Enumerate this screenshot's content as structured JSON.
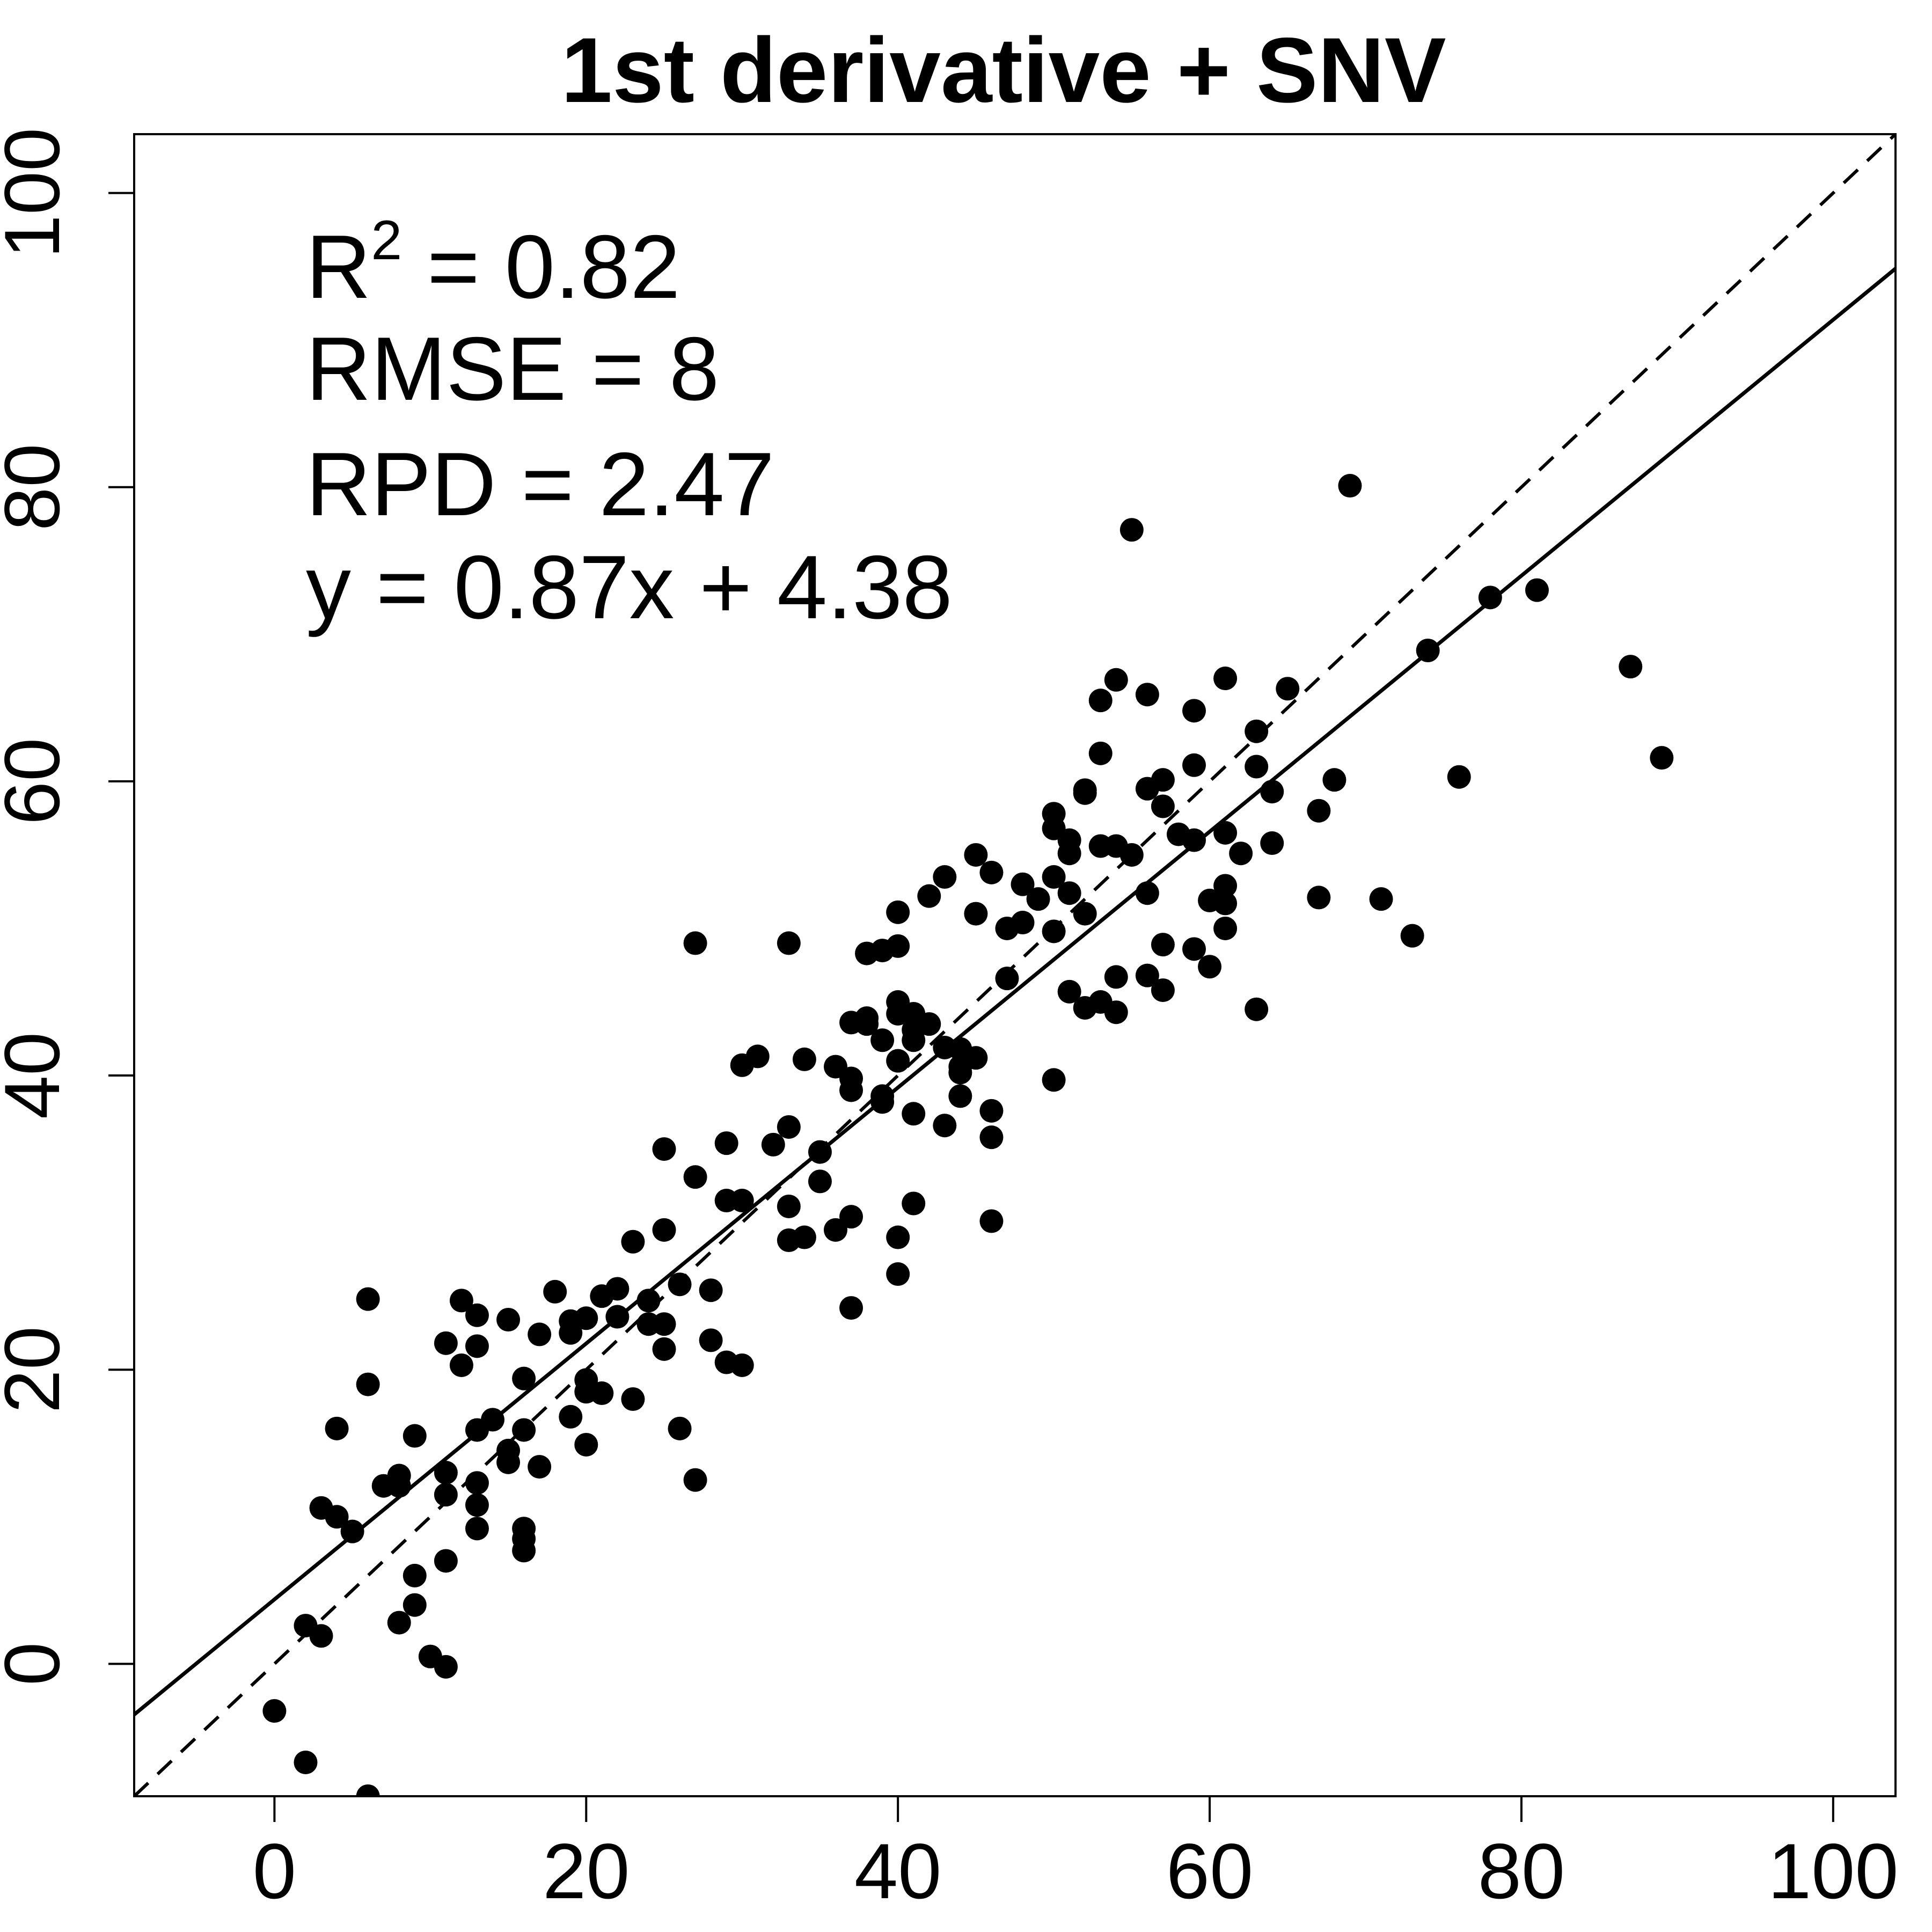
{
  "chart_data": {
    "type": "scatter",
    "title": "1st derivative + SNV",
    "xlabel": "",
    "ylabel": "",
    "xlim": [
      -9,
      104
    ],
    "ylim": [
      -9,
      104
    ],
    "x_ticks": [
      0,
      20,
      40,
      60,
      80,
      100
    ],
    "y_ticks": [
      0,
      20,
      40,
      60,
      80,
      100
    ],
    "x_tick_labels": [
      "0",
      "20",
      "40",
      "60",
      "80",
      "100"
    ],
    "y_tick_labels": [
      "0",
      "20",
      "40",
      "60",
      "80",
      "100"
    ],
    "grid": false,
    "legend": "none",
    "annotations": {
      "r2_prefix": "R",
      "r2_superscript": "2",
      "r2_value": " = 0.82",
      "rmse": "RMSE = 8",
      "rpd": "RPD = 2.47",
      "equation": "y = 0.87x + 4.38"
    },
    "lines": [
      {
        "kind": "fit",
        "style": "solid",
        "slope": 0.87,
        "intercept": 4.38
      },
      {
        "kind": "1:1",
        "style": "dashed",
        "slope": 1,
        "intercept": 0
      }
    ],
    "points": [
      [
        0,
        -3.2
      ],
      [
        2,
        -6.7
      ],
      [
        6,
        -9
      ],
      [
        2,
        2.6
      ],
      [
        3,
        1.9
      ],
      [
        3,
        10.6
      ],
      [
        4,
        10
      ],
      [
        4,
        16
      ],
      [
        5,
        9
      ],
      [
        6,
        19
      ],
      [
        6,
        24.8
      ],
      [
        7,
        12.1
      ],
      [
        8,
        12.1
      ],
      [
        8,
        12.8
      ],
      [
        8,
        2.8
      ],
      [
        9,
        6
      ],
      [
        9,
        4
      ],
      [
        9,
        15.5
      ],
      [
        10,
        0.5
      ],
      [
        11,
        21.8
      ],
      [
        11,
        13
      ],
      [
        11,
        11.5
      ],
      [
        11,
        7
      ],
      [
        11,
        -0.2
      ],
      [
        12,
        24.7
      ],
      [
        12,
        20.3
      ],
      [
        13,
        21.6
      ],
      [
        13,
        23.7
      ],
      [
        13,
        15.9
      ],
      [
        13,
        12.3
      ],
      [
        13,
        10.8
      ],
      [
        13,
        9.2
      ],
      [
        14,
        16.6
      ],
      [
        15,
        23.4
      ],
      [
        15,
        14.5
      ],
      [
        15,
        13.7
      ],
      [
        16,
        19.4
      ],
      [
        16,
        15.9
      ],
      [
        16,
        9.2
      ],
      [
        16,
        8.5
      ],
      [
        16,
        7.7
      ],
      [
        17,
        22.4
      ],
      [
        17,
        13.4
      ],
      [
        18,
        25.3
      ],
      [
        19,
        22.5
      ],
      [
        19,
        23.3
      ],
      [
        19,
        16.8
      ],
      [
        20,
        23.5
      ],
      [
        20,
        19.3
      ],
      [
        20,
        18.5
      ],
      [
        20,
        14.9
      ],
      [
        21,
        25
      ],
      [
        21,
        18.4
      ],
      [
        22,
        25.5
      ],
      [
        22,
        23.6
      ],
      [
        23,
        28.7
      ],
      [
        23,
        18
      ],
      [
        24,
        24.7
      ],
      [
        24,
        23.1
      ],
      [
        25,
        35
      ],
      [
        25,
        29.5
      ],
      [
        25,
        23.1
      ],
      [
        25,
        21.4
      ],
      [
        26,
        25.8
      ],
      [
        26,
        16
      ],
      [
        27,
        49
      ],
      [
        27,
        33.1
      ],
      [
        27,
        12.5
      ],
      [
        28,
        25.4
      ],
      [
        28,
        22
      ],
      [
        29,
        35.4
      ],
      [
        29,
        31.5
      ],
      [
        29,
        20.5
      ],
      [
        30,
        40.7
      ],
      [
        30,
        31.5
      ],
      [
        30,
        20.3
      ],
      [
        31,
        41.3
      ],
      [
        32,
        35.3
      ],
      [
        33,
        49
      ],
      [
        33,
        36.5
      ],
      [
        33,
        31.1
      ],
      [
        33,
        28.8
      ],
      [
        34,
        41.1
      ],
      [
        34,
        29
      ],
      [
        35,
        34.8
      ],
      [
        35,
        32.8
      ],
      [
        36,
        40.6
      ],
      [
        36,
        29.5
      ],
      [
        37,
        43.6
      ],
      [
        37,
        39.8
      ],
      [
        37,
        39
      ],
      [
        37,
        30.4
      ],
      [
        37,
        24.2
      ],
      [
        38,
        48.3
      ],
      [
        38,
        43.9
      ],
      [
        38,
        43.5
      ],
      [
        39,
        48.5
      ],
      [
        39,
        42.4
      ],
      [
        39,
        38.6
      ],
      [
        39,
        38.2
      ],
      [
        40,
        51.1
      ],
      [
        40,
        48.8
      ],
      [
        40,
        45
      ],
      [
        40,
        44.2
      ],
      [
        40,
        41
      ],
      [
        40,
        29
      ],
      [
        40,
        26.5
      ],
      [
        41,
        44.2
      ],
      [
        41,
        43.1
      ],
      [
        41,
        42.4
      ],
      [
        41,
        37.4
      ],
      [
        41,
        31.3
      ],
      [
        42,
        52.2
      ],
      [
        42,
        43.5
      ],
      [
        43,
        53.5
      ],
      [
        43,
        41.9
      ],
      [
        43,
        36.6
      ],
      [
        44,
        41.8
      ],
      [
        44,
        40.6
      ],
      [
        44,
        40.2
      ],
      [
        44,
        38.6
      ],
      [
        45,
        55
      ],
      [
        45,
        51
      ],
      [
        45,
        41.2
      ],
      [
        46,
        53.8
      ],
      [
        46,
        37.6
      ],
      [
        46,
        35.8
      ],
      [
        46,
        30.1
      ],
      [
        47,
        50
      ],
      [
        47,
        46.6
      ],
      [
        48,
        53
      ],
      [
        48,
        50.4
      ],
      [
        49,
        52
      ],
      [
        50,
        57.8
      ],
      [
        50,
        56.8
      ],
      [
        50,
        53.5
      ],
      [
        50,
        49.8
      ],
      [
        50,
        39.7
      ],
      [
        51,
        56
      ],
      [
        51,
        55.1
      ],
      [
        51,
        52.4
      ],
      [
        51,
        45.7
      ],
      [
        52,
        59.4
      ],
      [
        52,
        59.2
      ],
      [
        52,
        51
      ],
      [
        52,
        44.6
      ],
      [
        53,
        65.5
      ],
      [
        53,
        61.9
      ],
      [
        53,
        55.6
      ],
      [
        53,
        45
      ],
      [
        54,
        66.9
      ],
      [
        54,
        55.6
      ],
      [
        54,
        46.7
      ],
      [
        54,
        44.3
      ],
      [
        55,
        77.1
      ],
      [
        55,
        55
      ],
      [
        56,
        65.9
      ],
      [
        56,
        59.5
      ],
      [
        56,
        52.4
      ],
      [
        56,
        46.8
      ],
      [
        57,
        60.1
      ],
      [
        57,
        58.3
      ],
      [
        57,
        48.9
      ],
      [
        57,
        45.8
      ],
      [
        58,
        56.4
      ],
      [
        59,
        64.8
      ],
      [
        59,
        61.1
      ],
      [
        59,
        56
      ],
      [
        59,
        48.6
      ],
      [
        60,
        51.9
      ],
      [
        60,
        47.4
      ],
      [
        61,
        67
      ],
      [
        61,
        56.5
      ],
      [
        61,
        52.9
      ],
      [
        61,
        51.7
      ],
      [
        61,
        50
      ],
      [
        62,
        55.1
      ],
      [
        63,
        63.4
      ],
      [
        63,
        61
      ],
      [
        63,
        44.5
      ],
      [
        64,
        59.3
      ],
      [
        64,
        55.8
      ],
      [
        65,
        66.3
      ],
      [
        67,
        58
      ],
      [
        67,
        52.1
      ],
      [
        68,
        60.1
      ],
      [
        69,
        80.1
      ],
      [
        71,
        52
      ],
      [
        73,
        49.5
      ],
      [
        74,
        68.9
      ],
      [
        76,
        60.3
      ],
      [
        78,
        72.5
      ],
      [
        81,
        73
      ],
      [
        87,
        67.8
      ],
      [
        89,
        61.6
      ]
    ]
  }
}
